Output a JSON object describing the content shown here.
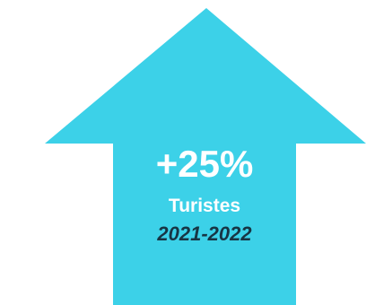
{
  "arrow": {
    "icon": "arrow-up-icon",
    "color": "#3cd1e8"
  },
  "stat": {
    "value": "+25%",
    "label": "Turistes",
    "period": "2021-2022",
    "value_color": "#ffffff",
    "period_color": "#173544"
  }
}
